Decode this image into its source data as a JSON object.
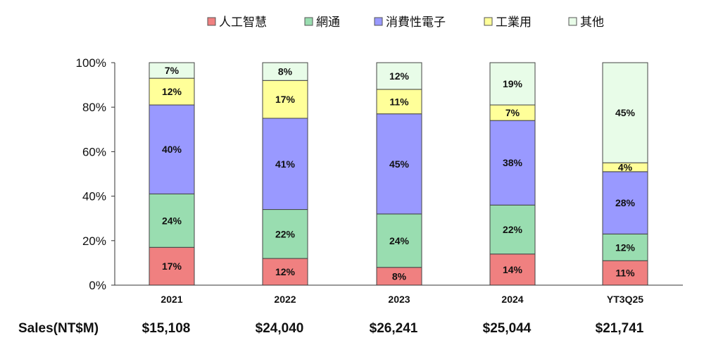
{
  "chart_data": {
    "type": "bar",
    "stacked": true,
    "categories": [
      "2021",
      "2022",
      "2023",
      "2024",
      "YT3Q25"
    ],
    "series": [
      {
        "name": "人工智慧",
        "color": "#f08080",
        "values": [
          17,
          12,
          8,
          14,
          11
        ]
      },
      {
        "name": "網通",
        "color": "#99ddb0",
        "values": [
          24,
          22,
          24,
          22,
          12
        ]
      },
      {
        "name": "消費性電子",
        "color": "#9999ff",
        "values": [
          40,
          41,
          45,
          38,
          28
        ]
      },
      {
        "name": "工業用",
        "color": "#ffff99",
        "values": [
          12,
          17,
          11,
          7,
          4
        ]
      },
      {
        "name": "其他",
        "color": "#e8fce8",
        "values": [
          7,
          8,
          12,
          19,
          45
        ]
      }
    ],
    "ylim": [
      0,
      100
    ],
    "yticks": [
      "0%",
      "20%",
      "40%",
      "60%",
      "80%",
      "100%"
    ],
    "grid": false,
    "legend_position": "top"
  },
  "sales": {
    "label": "Sales(NT$M)",
    "values": [
      "$15,108",
      "$24,040",
      "$26,241",
      "$25,044",
      "$21,741"
    ]
  }
}
